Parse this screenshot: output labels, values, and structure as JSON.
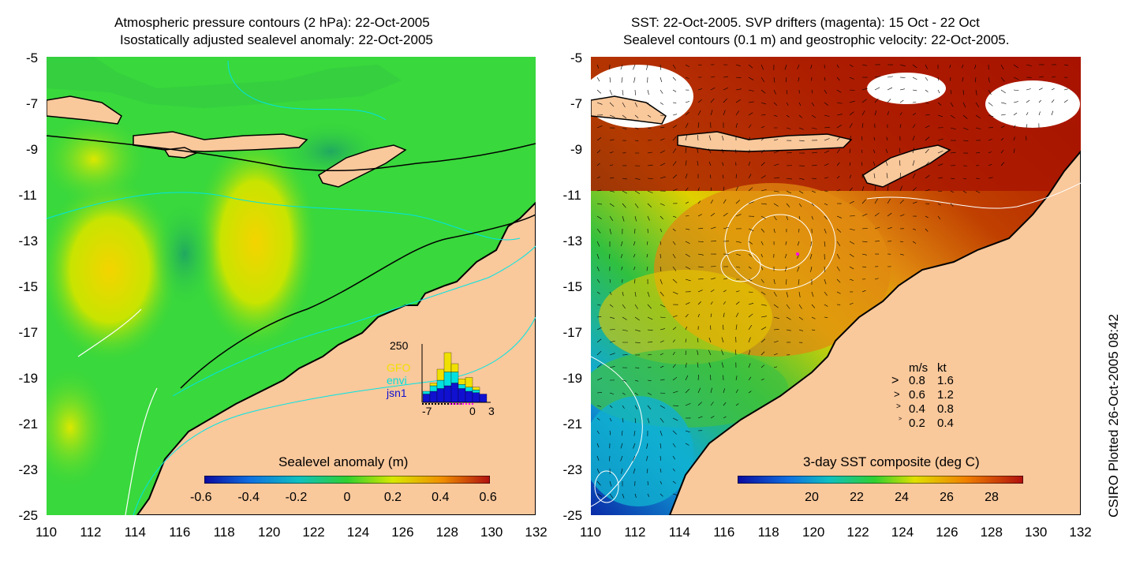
{
  "left_panel": {
    "title_line1": "Atmospheric pressure contours (2 hPa): 22-Oct-2005",
    "title_line2": "Isostatically adjusted sealevel anomaly: 22-Oct-2005",
    "colorbar_title": "Sealevel anomaly (m)",
    "colorbar_ticks": [
      "-0.6",
      "-0.4",
      "-0.2",
      "0",
      "0.2",
      "0.4",
      "0.6"
    ],
    "histogram": {
      "ymax_label": "250",
      "x_labels": [
        "-7",
        "0",
        "3"
      ],
      "satellites": [
        {
          "name": "GFO",
          "color": "#f0e000"
        },
        {
          "name": "envi",
          "color": "#00e0e0"
        },
        {
          "name": "jsn1",
          "color": "#1010d0"
        }
      ],
      "bars_gfo": [
        0,
        10,
        40,
        70,
        30,
        20,
        35,
        10,
        0
      ],
      "bars_envi": [
        10,
        20,
        30,
        50,
        40,
        15,
        15,
        10,
        0
      ],
      "bars_jsn1": [
        30,
        40,
        50,
        60,
        70,
        50,
        40,
        35,
        30
      ]
    }
  },
  "right_panel": {
    "title_line1": "SST: 22-Oct-2005. SVP drifters (magenta): 15 Oct - 22 Oct",
    "title_line2": "Sealevel contours (0.1 m) and geostrophic velocity: 22-Oct-2005.",
    "colorbar_title": "3-day SST composite (deg C)",
    "colorbar_ticks": [
      "20",
      "22",
      "24",
      "26",
      "28"
    ],
    "velocity_legend": {
      "header_ms": "m/s",
      "header_kt": "kt",
      "rows": [
        {
          "ms": "0.8",
          "kt": "1.6"
        },
        {
          "ms": "0.6",
          "kt": "1.2"
        },
        {
          "ms": "0.4",
          "kt": "0.8"
        },
        {
          "ms": "0.2",
          "kt": "0.4"
        }
      ]
    }
  },
  "axes": {
    "y_ticks": [
      "-5",
      "-7",
      "-9",
      "-11",
      "-13",
      "-15",
      "-17",
      "-19",
      "-21",
      "-23",
      "-25"
    ],
    "x_ticks": [
      "110",
      "112",
      "114",
      "116",
      "118",
      "120",
      "122",
      "124",
      "126",
      "128",
      "130",
      "132"
    ]
  },
  "credit": "CSIRO Plotted 26-Oct-2005 08:42",
  "colors": {
    "land": "#f9c89b",
    "ocean_green": "#39d83c",
    "sst_red": "#b31a00"
  }
}
